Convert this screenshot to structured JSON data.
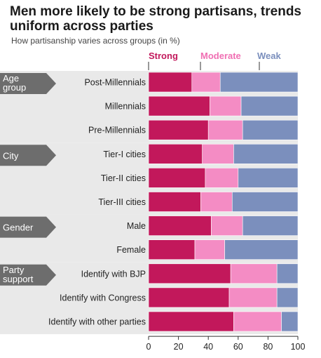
{
  "chart_data": {
    "type": "bar",
    "orientation": "horizontal",
    "stacked": true,
    "title": "Men more likely to be strong partisans, trends uniform across parties",
    "subtitle": "How partisanship varies across groups (in %)",
    "legend_placement": "top",
    "categories": [
      "Post-Millennials",
      "Millennials",
      "Pre-Millennials",
      "Tier-I cities",
      "Tier-II cities",
      "Tier-III cities",
      "Male",
      "Female",
      "Identify with BJP",
      "Identify with Congress",
      "Identify with other parties"
    ],
    "groups": [
      {
        "label": "Age group",
        "start": 0,
        "count": 3
      },
      {
        "label": "City",
        "start": 3,
        "count": 3
      },
      {
        "label": "Gender",
        "start": 6,
        "count": 2
      },
      {
        "label": "Party support",
        "start": 8,
        "count": 3
      }
    ],
    "series": [
      {
        "name": "Strong",
        "color": "#c2185b",
        "values": [
          29,
          41,
          40,
          36,
          38,
          35,
          42,
          31,
          55,
          54,
          57
        ]
      },
      {
        "name": "Moderate",
        "color": "#f48cc4",
        "values": [
          19,
          21,
          23,
          21,
          22,
          21,
          21,
          20,
          31,
          32,
          32
        ]
      },
      {
        "name": "Weak",
        "color": "#7b8fbd",
        "values": [
          52,
          38,
          37,
          43,
          40,
          44,
          37,
          49,
          14,
          14,
          11
        ]
      }
    ],
    "xlim": [
      0,
      100
    ],
    "xticks": [
      0,
      20,
      40,
      60,
      80,
      100
    ],
    "grid": false
  }
}
